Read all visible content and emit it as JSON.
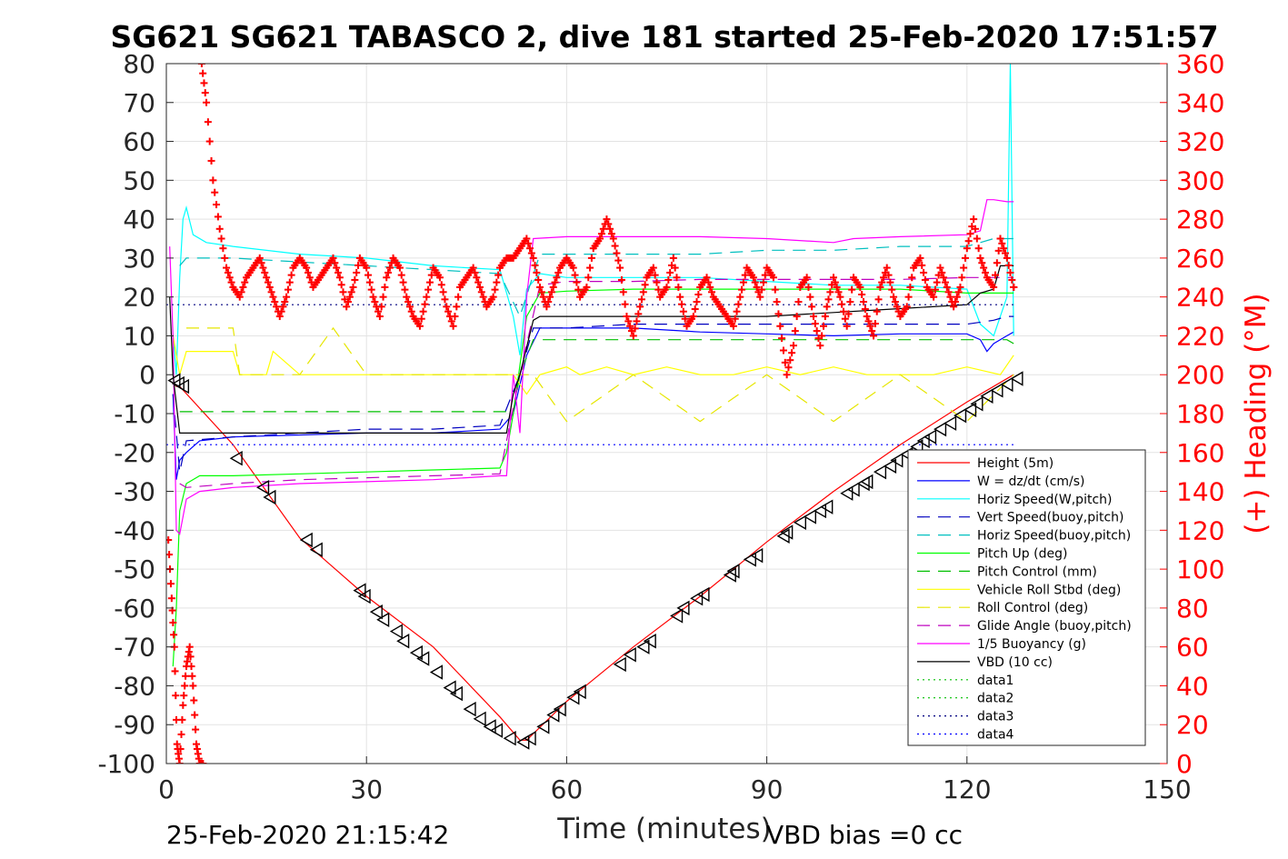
{
  "chart_data": {
    "type": "line",
    "title": "SG621 SG621 TABASCO 2, dive 181 started 25-Feb-2020 17:51:57",
    "xlabel": "Time (minutes)",
    "ylabel_right": "(+) Heading (°M)",
    "xlim": [
      0,
      150
    ],
    "ylim": [
      -100,
      80
    ],
    "ylim_right": [
      0,
      360
    ],
    "xticks": [
      "0",
      "30",
      "60",
      "90",
      "120",
      "150"
    ],
    "yticks": [
      "80",
      "70",
      "60",
      "50",
      "40",
      "30",
      "20",
      "10",
      "0",
      "-10",
      "-20",
      "-30",
      "-40",
      "-50",
      "-60",
      "-70",
      "-80",
      "-90",
      "-100"
    ],
    "yticks_right": [
      "360",
      "340",
      "320",
      "300",
      "280",
      "260",
      "240",
      "220",
      "200",
      "180",
      "160",
      "140",
      "120",
      "100",
      "80",
      "60",
      "40",
      "20",
      "0"
    ],
    "grid": true,
    "legend_position": "bottom-right",
    "footer_left": "25-Feb-2020 21:15:42",
    "footer_right": "VBD bias =0 cc",
    "colors": {
      "height": "#ff0000",
      "w": "#0000ff",
      "hspeed_w": "#00ffff",
      "vspeed_buoy": "#0000bf",
      "hspeed_buoy": "#00bfbf",
      "pitch_up": "#00ff00",
      "pitch_control": "#00bf00",
      "roll": "#ffff00",
      "roll_control": "#e6e600",
      "glide": "#bf00bf",
      "buoyancy": "#ff00ff",
      "vbd": "#000000",
      "heading": "#ff0000"
    },
    "series": [
      {
        "name": "Height (5m)",
        "key": "height",
        "style": "solid",
        "color": "#ff0000",
        "x": [
          1,
          1.5,
          2,
          10,
          20,
          30,
          40,
          50,
          53,
          54,
          60,
          70,
          80,
          90,
          100,
          110,
          120,
          127
        ],
        "y": [
          -2,
          -3,
          -3,
          -18,
          -42,
          -57,
          -70,
          -88,
          -94,
          -94,
          -84,
          -70,
          -57,
          -43,
          -30,
          -18,
          -7,
          0
        ]
      },
      {
        "name": "W = dz/dt (cm/s)",
        "key": "w",
        "style": "solid",
        "color": "#0000ff",
        "x": [
          1,
          1.5,
          2,
          3,
          5,
          10,
          20,
          30,
          40,
          50,
          51,
          52,
          54,
          56,
          60,
          70,
          80,
          90,
          100,
          110,
          120,
          122,
          123,
          124,
          126,
          127
        ],
        "y": [
          -5,
          -27,
          -22,
          -20,
          -17,
          -16,
          -15.5,
          -15,
          -15,
          -14,
          -12,
          -10,
          5,
          12,
          12,
          12,
          11,
          10.5,
          10,
          10.5,
          10.5,
          9,
          6,
          8,
          10,
          11
        ]
      },
      {
        "name": "Horiz Speed(W,pitch)",
        "key": "hspeed_w",
        "style": "solid",
        "color": "#00ffff",
        "x": [
          1,
          1.5,
          2,
          2.5,
          3,
          4,
          6,
          10,
          20,
          30,
          40,
          50,
          52,
          53,
          54,
          56,
          60,
          70,
          80,
          90,
          100,
          110,
          120,
          122,
          124,
          126,
          126.5,
          127
        ],
        "y": [
          10,
          0,
          25,
          40,
          43,
          36,
          34,
          33,
          31,
          30,
          28,
          27,
          15,
          5,
          22,
          26,
          25,
          25,
          25,
          24,
          23,
          23,
          22,
          13,
          10,
          20,
          80,
          10
        ]
      },
      {
        "name": "Vert Speed(buoy,pitch)",
        "key": "vspeed_buoy",
        "style": "dash",
        "color": "#0000bf",
        "x": [
          1,
          2,
          3,
          10,
          20,
          30,
          40,
          50,
          53,
          55,
          60,
          70,
          80,
          90,
          100,
          110,
          120,
          124,
          126,
          127
        ],
        "y": [
          -5,
          -25,
          -17,
          -16,
          -15,
          -14,
          -14,
          -13,
          0,
          12,
          12,
          13,
          13,
          13,
          13,
          13,
          13,
          14,
          15,
          15
        ]
      },
      {
        "name": "Horiz Speed(buoy,pitch)",
        "key": "hspeed_buoy",
        "style": "dash",
        "color": "#00bfbf",
        "x": [
          2,
          3,
          10,
          20,
          30,
          40,
          50,
          53,
          56,
          60,
          70,
          80,
          90,
          100,
          110,
          120,
          124,
          126,
          127
        ],
        "y": [
          28,
          30,
          30,
          29,
          28,
          27,
          26,
          15,
          31,
          31,
          31,
          31,
          32,
          32,
          33,
          33,
          35,
          35,
          35
        ]
      },
      {
        "name": "Pitch Up (deg)",
        "key": "pitch_up",
        "style": "solid",
        "color": "#00ff00",
        "x": [
          1,
          1.5,
          2,
          3,
          5,
          10,
          20,
          30,
          40,
          50,
          51,
          52,
          54,
          56,
          60,
          70,
          80,
          90,
          100,
          110,
          120,
          124,
          127
        ],
        "y": [
          -75,
          -60,
          -35,
          -28,
          -26,
          -26,
          -25.5,
          -25,
          -24.5,
          -24,
          -20,
          -10,
          15,
          21,
          21.5,
          22,
          22,
          22,
          22,
          22,
          21,
          21,
          21
        ]
      },
      {
        "name": "Pitch Control (mm)",
        "key": "pitch_control",
        "style": "dash",
        "color": "#00bf00",
        "x": [
          2,
          52,
          53,
          55,
          126,
          127
        ],
        "y": [
          -9.5,
          -9.5,
          0,
          9,
          9,
          8
        ]
      },
      {
        "name": "Vehicle Roll Stbd (deg)",
        "key": "roll",
        "style": "solid",
        "color": "#ffff00",
        "x": [
          1,
          2,
          3,
          6,
          10,
          11,
          15,
          16,
          20,
          25,
          30,
          35,
          40,
          45,
          50,
          52,
          54,
          56,
          60,
          62,
          66,
          70,
          75,
          80,
          85,
          90,
          95,
          100,
          105,
          110,
          115,
          120,
          125,
          127
        ],
        "y": [
          10,
          0,
          6,
          6,
          6,
          0,
          0,
          6,
          0,
          0,
          0,
          0,
          0,
          0,
          0,
          0,
          -5,
          0,
          2,
          0,
          2,
          0,
          2,
          0,
          0,
          2,
          0,
          2,
          0,
          0,
          0,
          2,
          0,
          5
        ]
      },
      {
        "name": "Roll Control (deg)",
        "key": "roll_control",
        "style": "dash",
        "color": "#e6e600",
        "x": [
          3,
          10,
          11,
          20,
          25,
          30,
          40,
          50,
          55,
          60,
          70,
          80,
          90,
          100,
          110,
          120,
          127
        ],
        "y": [
          12,
          12,
          0,
          0,
          12,
          0,
          0,
          0,
          0,
          -12,
          0,
          -12,
          0,
          -12,
          0,
          -12,
          0
        ]
      },
      {
        "name": "Glide Angle (buoy,pitch)",
        "key": "glide",
        "style": "dash",
        "color": "#bf00bf",
        "x": [
          2,
          3,
          10,
          20,
          30,
          40,
          50,
          53,
          56,
          60,
          70,
          80,
          90,
          100,
          110,
          120,
          127
        ],
        "y": [
          -28,
          -29,
          -28,
          -27,
          -26.5,
          -26,
          -25.5,
          0,
          23,
          24,
          24,
          24.5,
          24.5,
          24.5,
          24.5,
          25,
          25
        ]
      },
      {
        "name": "1/5 Buoyancy (g)",
        "key": "buoyancy",
        "style": "solid",
        "color": "#ff00ff",
        "x": [
          0.5,
          1,
          1.5,
          2,
          3,
          5,
          10,
          20,
          30,
          40,
          50,
          51,
          52,
          53,
          54,
          55,
          60,
          70,
          80,
          90,
          100,
          103,
          110,
          120,
          122,
          123,
          124,
          126,
          127
        ],
        "y": [
          33,
          10,
          -40,
          -41,
          -32,
          -30,
          -29,
          -28,
          -27.5,
          -27,
          -26,
          -26,
          0,
          -15,
          20,
          35,
          35.5,
          35.5,
          35.5,
          35,
          34,
          35,
          35.5,
          36,
          37,
          45,
          45,
          44.5,
          44.5
        ]
      },
      {
        "name": "VBD (10 cc)",
        "key": "vbd",
        "style": "solid",
        "color": "#000000",
        "x": [
          0.5,
          1,
          2,
          3,
          51,
          52,
          53,
          55,
          56,
          90,
          100,
          110,
          120,
          122,
          124,
          125,
          126,
          127
        ],
        "y": [
          20,
          0,
          -15,
          -15,
          -15,
          -5,
          0,
          14,
          15,
          15,
          16,
          17,
          18,
          21,
          22,
          28,
          28,
          28
        ]
      },
      {
        "name": "data1",
        "key": "data1",
        "style": "dot",
        "color": "#00bf00",
        "x": [],
        "y": []
      },
      {
        "name": "data2",
        "key": "data2",
        "style": "dot",
        "color": "#00bf00",
        "x": [],
        "y": []
      },
      {
        "name": "data3",
        "key": "data3",
        "style": "dot",
        "color": "#000080",
        "x": [
          0,
          127
        ],
        "y": [
          18,
          18
        ]
      },
      {
        "name": "data4",
        "key": "data4",
        "style": "dot",
        "color": "#0000ff",
        "x": [
          0,
          127
        ],
        "y": [
          -18,
          -18
        ]
      }
    ],
    "height_markers": {
      "x": [
        1.2,
        1.8,
        2.5,
        10.5,
        14.5,
        15.5,
        21,
        22.5,
        29,
        29.7,
        31.5,
        32.5,
        34.5,
        35.5,
        37.5,
        38.5,
        40.5,
        42.5,
        43.5,
        45.5,
        47,
        48.5,
        49.5,
        51.5,
        53.5,
        54.5,
        56.5,
        58,
        59,
        61,
        62,
        68,
        69.5,
        71.5,
        72.5,
        76.5,
        77.5,
        79.5,
        80.5,
        84.5,
        85,
        87.5,
        88.5,
        92.5,
        93,
        95,
        96.5,
        98,
        99,
        102,
        103,
        104.5,
        105,
        107,
        108.5,
        109.5,
        111,
        112.5,
        113.5,
        114.5,
        116,
        117.5,
        119,
        120.5,
        121.5,
        123,
        124.5,
        126,
        127.5
      ],
      "y": [
        -1.5,
        -2.3,
        -3,
        -21.5,
        -29,
        -31.5,
        -42.5,
        -45,
        -55.5,
        -57,
        -61,
        -63,
        -66,
        -68.5,
        -71.5,
        -73,
        -76.5,
        -80.5,
        -82,
        -86,
        -88.5,
        -90.5,
        -91.5,
        -93.5,
        -94.5,
        -93.5,
        -90.5,
        -87.5,
        -86,
        -83,
        -81.5,
        -74.5,
        -72,
        -70,
        -68.5,
        -62,
        -60,
        -57.5,
        -56.5,
        -51.5,
        -50.5,
        -47.5,
        -46.5,
        -41.5,
        -40.5,
        -38,
        -36.5,
        -35,
        -34,
        -30.5,
        -29.5,
        -28,
        -27.5,
        -25,
        -23.5,
        -22,
        -20.5,
        -18.5,
        -17,
        -16,
        -14,
        -12.5,
        -10.5,
        -9,
        -7.5,
        -5.5,
        -4,
        -2.5,
        -1
      ]
    },
    "heading": {
      "name": "(+) Heading",
      "x": [
        0.3,
        0.8,
        1.2,
        1.6,
        2.0,
        2.5,
        3.0,
        3.5,
        4.0,
        4.5,
        5.0,
        5.5,
        5.3,
        6,
        7,
        8,
        9,
        10,
        11,
        12,
        13,
        14,
        15,
        16,
        17,
        18,
        19,
        20,
        21,
        22,
        23,
        24,
        25,
        26,
        27,
        28,
        29,
        30,
        31,
        32,
        33,
        34,
        35,
        36,
        37,
        38,
        39,
        40,
        41,
        42,
        43,
        44,
        45,
        46,
        47,
        48,
        49,
        50,
        51,
        52,
        53,
        54,
        55,
        56,
        57,
        58,
        59,
        60,
        61,
        62,
        63,
        64,
        65,
        66,
        67,
        68,
        69,
        70,
        71,
        72,
        73,
        74,
        75,
        76,
        77,
        78,
        79,
        80,
        81,
        82,
        83,
        84,
        85,
        86,
        87,
        88,
        89,
        90,
        91,
        92,
        93,
        94,
        95,
        96,
        97,
        98,
        99,
        100,
        101,
        102,
        103,
        104,
        105,
        106,
        107,
        108,
        109,
        110,
        111,
        112,
        113,
        114,
        115,
        116,
        117,
        118,
        119,
        120,
        121,
        122,
        123,
        124,
        125,
        126,
        127
      ],
      "y": [
        115,
        85,
        60,
        10,
        0,
        30,
        50,
        60,
        40,
        10,
        0,
        0,
        360,
        340,
        300,
        275,
        255,
        245,
        240,
        250,
        255,
        260,
        250,
        240,
        230,
        240,
        255,
        260,
        255,
        245,
        250,
        255,
        260,
        250,
        235,
        245,
        260,
        255,
        240,
        230,
        250,
        260,
        255,
        240,
        230,
        225,
        240,
        255,
        250,
        235,
        225,
        245,
        250,
        255,
        245,
        235,
        240,
        255,
        260,
        260,
        265,
        270,
        260,
        245,
        235,
        245,
        255,
        260,
        255,
        240,
        245,
        265,
        270,
        280,
        270,
        255,
        230,
        220,
        235,
        250,
        255,
        240,
        245,
        260,
        240,
        225,
        230,
        245,
        250,
        240,
        235,
        230,
        225,
        240,
        255,
        250,
        240,
        255,
        250,
        225,
        200,
        215,
        245,
        250,
        230,
        215,
        235,
        250,
        240,
        225,
        250,
        245,
        230,
        220,
        245,
        255,
        240,
        230,
        235,
        255,
        260,
        245,
        240,
        255,
        245,
        235,
        245,
        265,
        280,
        260,
        250,
        245,
        270,
        260,
        245
      ]
    }
  }
}
